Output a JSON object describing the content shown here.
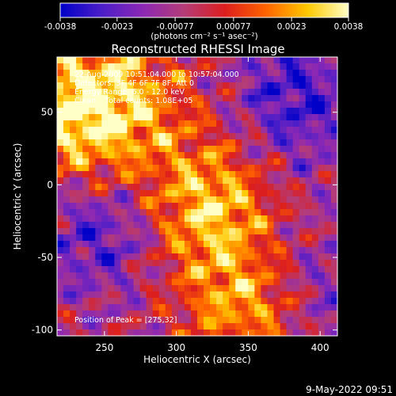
{
  "chart_data": {
    "type": "heatmap",
    "title": "Reconstructed RHESSI Image",
    "xlabel": "Heliocentric X (arcsec)",
    "ylabel": "Heliocentric Y (arcsec)",
    "xlim": [
      217,
      412
    ],
    "ylim": [
      -104,
      88
    ],
    "xticks": [
      250,
      300,
      350,
      400
    ],
    "yticks": [
      -100,
      -50,
      0,
      50
    ],
    "colorbar": {
      "min": -0.0038,
      "max": 0.0038,
      "ticks": [
        "-0.0038",
        "-0.0023",
        "-0.00077",
        "0.00077",
        "0.0023",
        "0.0038"
      ],
      "tick_values": [
        -0.0038,
        -0.0023,
        -0.00077,
        0.00077,
        0.0023,
        0.0038
      ],
      "unit_label": "(photons cm⁻² s⁻¹ asec⁻²)",
      "colors": [
        "#0000c8",
        "#4b1ec8",
        "#8c28b4",
        "#b43c78",
        "#dc1e1e",
        "#ff6400",
        "#ffc800",
        "#ffffc8"
      ]
    },
    "annotations": [
      "22-Aug-2009 10:51:04.000 to 10:57:04.000",
      "Detectors: 3F 4F 6F 7F 8F, Att 0",
      "Energy Range: 6.0 - 12.0 keV",
      "Clean    Total counts: 1.08E+05"
    ],
    "peak_label": "Position of Peak = [275,32]",
    "peak_position": [
      275,
      32
    ],
    "grid": false
  },
  "footer": {
    "timestamp": "9-May-2022 09:51"
  }
}
